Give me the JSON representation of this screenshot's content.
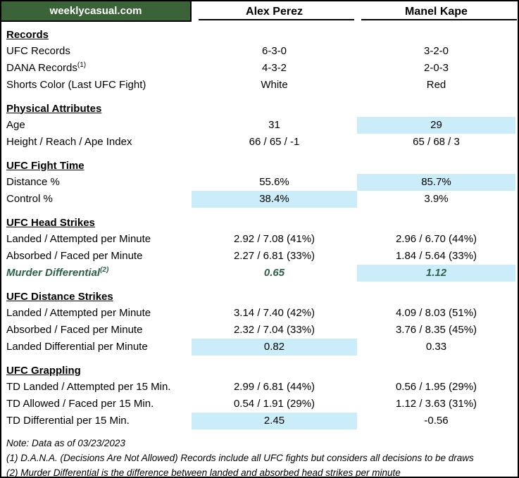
{
  "colors": {
    "header_green": "#3b6338",
    "highlight_blue": "#cbecf9",
    "differential_green": "#2d6145"
  },
  "header": {
    "site": "weeklycasual.com",
    "fighter1": "Alex Perez",
    "fighter2": "Manel Kape"
  },
  "sections": [
    {
      "title": "Records",
      "rows": [
        {
          "label": "UFC Records",
          "sup": "",
          "v1": "6-3-0",
          "v2": "3-2-0",
          "h1": false,
          "h2": false,
          "style": "normal"
        },
        {
          "label": "DANA Records",
          "sup": "(1)",
          "v1": "4-3-2",
          "v2": "2-0-3",
          "h1": false,
          "h2": false,
          "style": "normal"
        },
        {
          "label": "Shorts Color (Last UFC Fight)",
          "sup": "",
          "v1": "White",
          "v2": "Red",
          "h1": false,
          "h2": false,
          "style": "normal"
        }
      ]
    },
    {
      "title": "Physical Attributes",
      "rows": [
        {
          "label": "Age",
          "sup": "",
          "v1": "31",
          "v2": "29",
          "h1": false,
          "h2": true,
          "style": "normal"
        },
        {
          "label": "Height / Reach / Ape Index",
          "sup": "",
          "v1": "66 / 65 / -1",
          "v2": "65 / 68 / 3",
          "h1": false,
          "h2": false,
          "style": "normal"
        }
      ]
    },
    {
      "title": "UFC Fight Time",
      "rows": [
        {
          "label": "Distance %",
          "sup": "",
          "v1": "55.6%",
          "v2": "85.7%",
          "h1": false,
          "h2": true,
          "style": "normal"
        },
        {
          "label": "Control %",
          "sup": "",
          "v1": "38.4%",
          "v2": "3.9%",
          "h1": true,
          "h2": false,
          "style": "normal"
        }
      ]
    },
    {
      "title": "UFC Head Strikes",
      "rows": [
        {
          "label": "Landed / Attempted per Minute",
          "sup": "",
          "v1": "2.92 / 7.08 (41%)",
          "v2": "2.96 / 6.70 (44%)",
          "h1": false,
          "h2": false,
          "style": "normal"
        },
        {
          "label": "Absorbed / Faced per Minute",
          "sup": "",
          "v1": "2.27 / 6.81 (33%)",
          "v2": "1.84 / 5.64 (33%)",
          "h1": false,
          "h2": false,
          "style": "normal"
        },
        {
          "label": "Murder Differential",
          "sup": "(2)",
          "v1": "0.65",
          "v2": "1.12",
          "h1": false,
          "h2": true,
          "style": "murder"
        }
      ]
    },
    {
      "title": "UFC Distance Strikes",
      "rows": [
        {
          "label": "Landed / Attempted per Minute",
          "sup": "",
          "v1": "3.14 / 7.40 (42%)",
          "v2": "4.09 / 8.03 (51%)",
          "h1": false,
          "h2": false,
          "style": "normal"
        },
        {
          "label": "Absorbed / Faced per Minute",
          "sup": "",
          "v1": "2.32 / 7.04 (33%)",
          "v2": "3.76 / 8.35 (45%)",
          "h1": false,
          "h2": false,
          "style": "normal"
        },
        {
          "label": "Landed Differential per Minute",
          "sup": "",
          "v1": "0.82",
          "v2": "0.33",
          "h1": true,
          "h2": false,
          "style": "normal"
        }
      ]
    },
    {
      "title": "UFC Grappling",
      "rows": [
        {
          "label": "TD Landed / Attempted per 15 Min.",
          "sup": "",
          "v1": "2.99 / 6.81 (44%)",
          "v2": "0.56 / 1.95 (29%)",
          "h1": false,
          "h2": false,
          "style": "normal"
        },
        {
          "label": "TD Allowed / Faced per 15 Min.",
          "sup": "",
          "v1": "0.54 / 1.91 (29%)",
          "v2": "1.12 / 3.63 (31%)",
          "h1": false,
          "h2": false,
          "style": "normal"
        },
        {
          "label": "TD Differential per 15 Min.",
          "sup": "",
          "v1": "2.45",
          "v2": "-0.56",
          "h1": true,
          "h2": false,
          "style": "normal"
        }
      ]
    }
  ],
  "footnotes": [
    "Note: Data as of 03/23/2023",
    "(1) D.A.N.A. (Decisions Are Not Allowed) Records include all UFC fights but considers all decisions to be draws",
    "(2) Murder Differential is the difference between landed and absorbed head strikes per minute"
  ]
}
